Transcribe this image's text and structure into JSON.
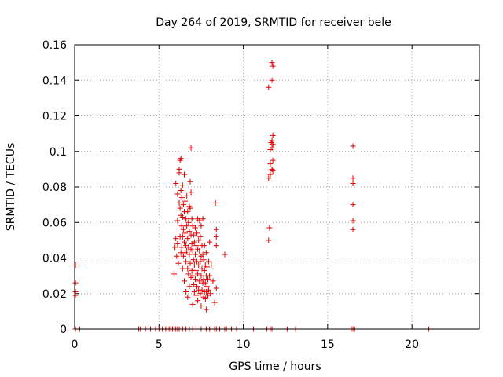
{
  "chart_data": {
    "type": "scatter",
    "title": "Day 264 of 2019, SRMTID for receiver bele",
    "xlabel": "GPS time / hours",
    "ylabel": "SRMTID / TECUs",
    "xlim": [
      0,
      24
    ],
    "ylim": [
      0,
      0.16
    ],
    "xticks": [
      0,
      5,
      10,
      15,
      20
    ],
    "xtick_labels": [
      "0",
      "5",
      "10",
      "15",
      "20"
    ],
    "yticks": [
      0,
      0.02,
      0.04,
      0.06,
      0.08,
      0.1,
      0.12,
      0.14,
      0.16
    ],
    "ytick_labels": [
      "0",
      "0.02",
      "0.04",
      "0.06",
      "0.08",
      "0.1",
      "0.12",
      "0.14",
      "0.16"
    ],
    "grid": true,
    "marker": "+",
    "color": "#e00000",
    "series": [
      {
        "name": "bele",
        "points": [
          [
            0.05,
            0.036
          ],
          [
            0.05,
            0.026
          ],
          [
            0.05,
            0.021
          ],
          [
            0.05,
            0.019
          ],
          [
            0.05,
            0
          ],
          [
            0.3,
            0
          ],
          [
            3.8,
            0
          ],
          [
            3.9,
            0
          ],
          [
            4.2,
            0
          ],
          [
            4.5,
            0
          ],
          [
            4.8,
            0
          ],
          [
            5.0,
            0
          ],
          [
            5.2,
            0
          ],
          [
            5.4,
            0
          ],
          [
            5.6,
            0
          ],
          [
            5.7,
            0
          ],
          [
            5.8,
            0
          ],
          [
            5.9,
            0
          ],
          [
            6.0,
            0
          ],
          [
            6.1,
            0
          ],
          [
            6.2,
            0
          ],
          [
            6.4,
            0
          ],
          [
            6.6,
            0
          ],
          [
            6.8,
            0
          ],
          [
            7.0,
            0
          ],
          [
            7.2,
            0
          ],
          [
            7.5,
            0
          ],
          [
            7.8,
            0
          ],
          [
            8.0,
            0
          ],
          [
            8.3,
            0
          ],
          [
            8.4,
            0
          ],
          [
            8.6,
            0
          ],
          [
            8.9,
            0
          ],
          [
            9.0,
            0
          ],
          [
            9.3,
            0
          ],
          [
            9.6,
            0
          ],
          [
            10.6,
            0
          ],
          [
            11.4,
            0
          ],
          [
            11.6,
            0
          ],
          [
            11.7,
            0
          ],
          [
            12.6,
            0
          ],
          [
            13.1,
            0
          ],
          [
            16.4,
            0
          ],
          [
            16.5,
            0
          ],
          [
            16.6,
            0
          ],
          [
            21.0,
            0
          ],
          [
            5.9,
            0.031
          ],
          [
            5.95,
            0.046
          ],
          [
            6.0,
            0.082
          ],
          [
            6.0,
            0.051
          ],
          [
            6.05,
            0.041
          ],
          [
            6.1,
            0.076
          ],
          [
            6.1,
            0.061
          ],
          [
            6.1,
            0.048
          ],
          [
            6.15,
            0.037
          ],
          [
            6.2,
            0.09
          ],
          [
            6.2,
            0.088
          ],
          [
            6.2,
            0.071
          ],
          [
            6.25,
            0.095
          ],
          [
            6.25,
            0.068
          ],
          [
            6.25,
            0.052
          ],
          [
            6.3,
            0.096
          ],
          [
            6.3,
            0.078
          ],
          [
            6.3,
            0.064
          ],
          [
            6.3,
            0.043
          ],
          [
            6.35,
            0.074
          ],
          [
            6.35,
            0.058
          ],
          [
            6.35,
            0.046
          ],
          [
            6.4,
            0.081
          ],
          [
            6.4,
            0.063
          ],
          [
            6.4,
            0.052
          ],
          [
            6.4,
            0.034
          ],
          [
            6.45,
            0.07
          ],
          [
            6.45,
            0.056
          ],
          [
            6.45,
            0.041
          ],
          [
            6.5,
            0.087
          ],
          [
            6.5,
            0.066
          ],
          [
            6.5,
            0.049
          ],
          [
            6.5,
            0.027
          ],
          [
            6.55,
            0.072
          ],
          [
            6.55,
            0.054
          ],
          [
            6.55,
            0.043
          ],
          [
            6.6,
            0.062
          ],
          [
            6.6,
            0.047
          ],
          [
            6.6,
            0.038
          ],
          [
            6.6,
            0.021
          ],
          [
            6.65,
            0.075
          ],
          [
            6.65,
            0.058
          ],
          [
            6.65,
            0.044
          ],
          [
            6.7,
            0.066
          ],
          [
            6.7,
            0.051
          ],
          [
            6.7,
            0.034
          ],
          [
            6.7,
            0.018
          ],
          [
            6.75,
            0.06
          ],
          [
            6.75,
            0.046
          ],
          [
            6.75,
            0.031
          ],
          [
            6.8,
            0.069
          ],
          [
            6.8,
            0.055
          ],
          [
            6.8,
            0.042
          ],
          [
            6.8,
            0.024
          ],
          [
            6.85,
            0.083
          ],
          [
            6.85,
            0.068
          ],
          [
            6.85,
            0.037
          ],
          [
            6.9,
            0.102
          ],
          [
            6.9,
            0.077
          ],
          [
            6.9,
            0.053
          ],
          [
            6.9,
            0.045
          ],
          [
            6.9,
            0.029
          ],
          [
            6.95,
            0.062
          ],
          [
            6.95,
            0.048
          ],
          [
            6.95,
            0.033
          ],
          [
            7.0,
            0.058
          ],
          [
            7.0,
            0.044
          ],
          [
            7.0,
            0.03
          ],
          [
            7.0,
            0.014
          ],
          [
            7.05,
            0.053
          ],
          [
            7.05,
            0.039
          ],
          [
            7.05,
            0.025
          ],
          [
            7.1,
            0.049
          ],
          [
            7.1,
            0.036
          ],
          [
            7.1,
            0.021
          ],
          [
            7.15,
            0.057
          ],
          [
            7.15,
            0.042
          ],
          [
            7.15,
            0.028
          ],
          [
            7.2,
            0.047
          ],
          [
            7.2,
            0.033
          ],
          [
            7.2,
            0.019
          ],
          [
            7.25,
            0.054
          ],
          [
            7.25,
            0.038
          ],
          [
            7.25,
            0.024
          ],
          [
            7.3,
            0.062
          ],
          [
            7.3,
            0.045
          ],
          [
            7.3,
            0.031
          ],
          [
            7.3,
            0.016
          ],
          [
            7.35,
            0.05
          ],
          [
            7.35,
            0.036
          ],
          [
            7.35,
            0.022
          ],
          [
            7.4,
            0.061
          ],
          [
            7.4,
            0.044
          ],
          [
            7.4,
            0.027
          ],
          [
            7.45,
            0.052
          ],
          [
            7.45,
            0.038
          ],
          [
            7.45,
            0.02
          ],
          [
            7.5,
            0.058
          ],
          [
            7.5,
            0.041
          ],
          [
            7.5,
            0.03
          ],
          [
            7.5,
            0.013
          ],
          [
            7.55,
            0.047
          ],
          [
            7.55,
            0.034
          ],
          [
            7.55,
            0.022
          ],
          [
            7.6,
            0.062
          ],
          [
            7.6,
            0.042
          ],
          [
            7.6,
            0.026
          ],
          [
            7.65,
            0.039
          ],
          [
            7.65,
            0.028
          ],
          [
            7.65,
            0.018
          ],
          [
            7.7,
            0.047
          ],
          [
            7.7,
            0.033
          ],
          [
            7.7,
            0.021
          ],
          [
            7.75,
            0.036
          ],
          [
            7.75,
            0.026
          ],
          [
            7.75,
            0.017
          ],
          [
            7.8,
            0.043
          ],
          [
            7.8,
            0.03
          ],
          [
            7.8,
            0.021
          ],
          [
            7.8,
            0.011
          ],
          [
            7.85,
            0.035
          ],
          [
            7.85,
            0.024
          ],
          [
            7.9,
            0.028
          ],
          [
            7.9,
            0.019
          ],
          [
            7.95,
            0.038
          ],
          [
            7.95,
            0.022
          ],
          [
            8.0,
            0.049
          ],
          [
            8.0,
            0.03
          ],
          [
            8.05,
            0.02
          ],
          [
            8.1,
            0.036
          ],
          [
            8.2,
            0.027
          ],
          [
            8.3,
            0.015
          ],
          [
            8.35,
            0.071
          ],
          [
            8.4,
            0.056
          ],
          [
            8.4,
            0.052
          ],
          [
            8.4,
            0.047
          ],
          [
            8.4,
            0.023
          ],
          [
            8.9,
            0.042
          ],
          [
            11.5,
            0.136
          ],
          [
            11.5,
            0.085
          ],
          [
            11.5,
            0.05
          ],
          [
            11.55,
            0.057
          ],
          [
            11.6,
            0.093
          ],
          [
            11.6,
            0.087
          ],
          [
            11.6,
            0.101
          ],
          [
            11.65,
            0.105
          ],
          [
            11.7,
            0.15
          ],
          [
            11.7,
            0.14
          ],
          [
            11.7,
            0.106
          ],
          [
            11.7,
            0.102
          ],
          [
            11.7,
            0.09
          ],
          [
            11.75,
            0.148
          ],
          [
            11.75,
            0.109
          ],
          [
            11.75,
            0.104
          ],
          [
            11.75,
            0.095
          ],
          [
            11.75,
            0.089
          ],
          [
            16.5,
            0.103
          ],
          [
            16.5,
            0.085
          ],
          [
            16.5,
            0.082
          ],
          [
            16.5,
            0.07
          ],
          [
            16.5,
            0.061
          ],
          [
            16.5,
            0.056
          ]
        ]
      }
    ]
  }
}
